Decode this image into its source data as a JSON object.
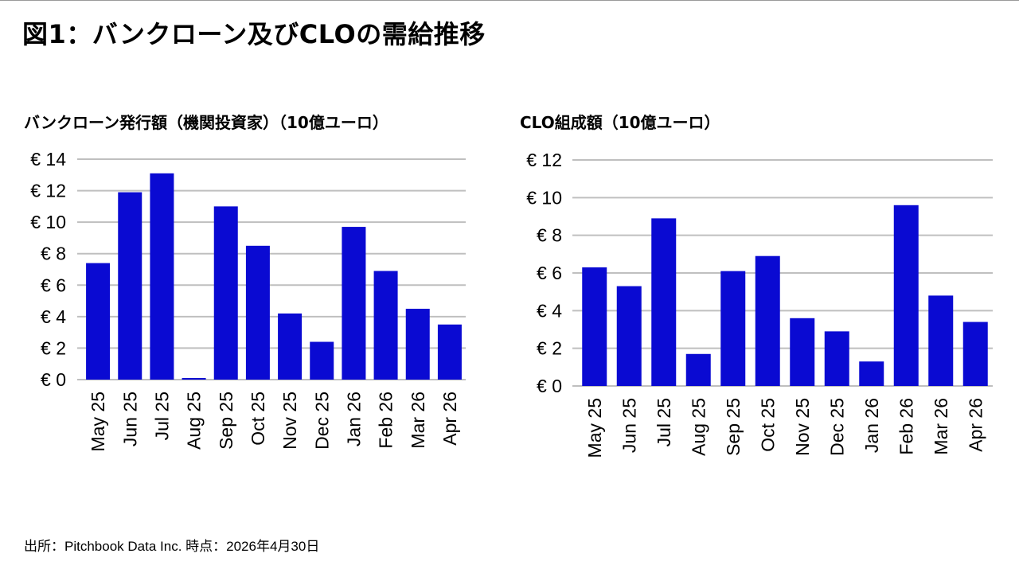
{
  "page": {
    "title": "図1：バンクローン及びCLOの需給推移",
    "source": "出所：Pitchbook Data Inc. 時点：2026年4月30日"
  },
  "colors": {
    "bar": "#0a0ad2",
    "grid": "#bfbfbf",
    "axis": "#bfbfbf"
  },
  "chart_data": [
    {
      "type": "bar",
      "title": "バンクローン発行額（機関投資家）（10億ユーロ）",
      "categories": [
        "May 25",
        "Jun 25",
        "Jul 25",
        "Aug 25",
        "Sep 25",
        "Oct 25",
        "Nov 25",
        "Dec 25",
        "Jan 26",
        "Feb 26",
        "Mar 26",
        "Apr 26"
      ],
      "values": [
        7.4,
        11.9,
        13.1,
        0.1,
        11.0,
        8.5,
        4.2,
        2.4,
        9.7,
        6.9,
        4.5,
        3.5
      ],
      "ylim": [
        0,
        14
      ],
      "yticks": [
        0,
        2,
        4,
        6,
        8,
        10,
        12,
        14
      ],
      "tick_prefix": "€ ",
      "grid": true
    },
    {
      "type": "bar",
      "title": "CLO組成額（10億ユーロ）",
      "categories": [
        "May 25",
        "Jun 25",
        "Jul 25",
        "Aug 25",
        "Sep 25",
        "Oct 25",
        "Nov 25",
        "Dec 25",
        "Jan 26",
        "Feb 26",
        "Mar 26",
        "Apr 26"
      ],
      "values": [
        6.3,
        5.3,
        8.9,
        1.7,
        6.1,
        6.9,
        3.6,
        2.9,
        1.3,
        9.6,
        4.8,
        3.4
      ],
      "ylim": [
        0,
        12
      ],
      "yticks": [
        0,
        2,
        4,
        6,
        8,
        10,
        12
      ],
      "tick_prefix": "€ ",
      "grid": true
    }
  ]
}
